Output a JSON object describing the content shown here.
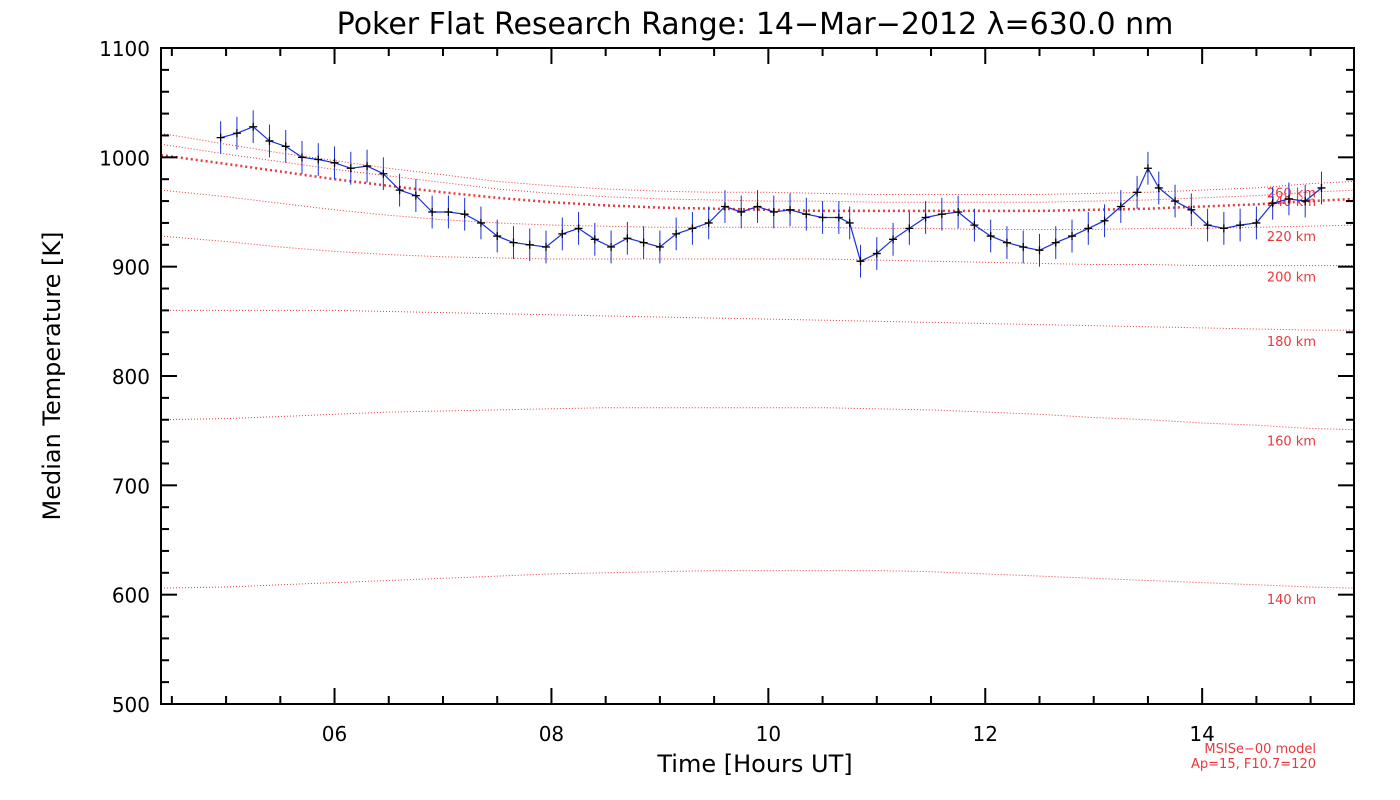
{
  "chart_data": {
    "type": "line",
    "title": "Poker Flat Research Range: 14−Mar−2012 λ=630.0 nm",
    "xlabel": "Time [Hours UT]",
    "ylabel": "Median Temperature [K]",
    "xlim": [
      4.4,
      15.4
    ],
    "ylim": [
      500,
      1100
    ],
    "xticks": [
      6,
      8,
      10,
      12,
      14
    ],
    "xtick_labels": [
      "06",
      "08",
      "10",
      "12",
      "14"
    ],
    "yticks": [
      500,
      600,
      700,
      800,
      900,
      1000,
      1100
    ],
    "ytick_labels": [
      "500",
      "600",
      "700",
      "800",
      "900",
      "1000",
      "1100"
    ],
    "grid": false,
    "colors": {
      "measurement_line": "#1a2fd6",
      "error_bars": "#1a2fd6",
      "markers": "#000000",
      "model": "#e8383c"
    },
    "measurement": {
      "x": [
        4.95,
        5.1,
        5.25,
        5.4,
        5.55,
        5.7,
        5.85,
        6.0,
        6.15,
        6.3,
        6.45,
        6.6,
        6.75,
        6.9,
        7.05,
        7.2,
        7.35,
        7.5,
        7.65,
        7.8,
        7.95,
        8.1,
        8.25,
        8.4,
        8.55,
        8.7,
        8.85,
        9.0,
        9.15,
        9.3,
        9.45,
        9.6,
        9.75,
        9.9,
        10.05,
        10.2,
        10.35,
        10.5,
        10.65,
        10.75,
        10.85,
        11.0,
        11.15,
        11.3,
        11.45,
        11.6,
        11.75,
        11.9,
        12.05,
        12.2,
        12.35,
        12.5,
        12.65,
        12.8,
        12.95,
        13.1,
        13.25,
        13.4,
        13.5,
        13.6,
        13.75,
        13.9,
        14.05,
        14.2,
        14.35,
        14.5,
        14.65,
        14.8,
        14.95,
        15.1
      ],
      "y": [
        1018,
        1022,
        1028,
        1015,
        1010,
        1000,
        998,
        995,
        990,
        992,
        985,
        970,
        965,
        950,
        950,
        948,
        940,
        928,
        922,
        920,
        918,
        930,
        935,
        925,
        918,
        926,
        922,
        918,
        930,
        935,
        940,
        955,
        950,
        955,
        950,
        952,
        948,
        945,
        945,
        940,
        905,
        912,
        925,
        935,
        945,
        948,
        950,
        938,
        928,
        922,
        918,
        915,
        922,
        928,
        935,
        942,
        955,
        968,
        990,
        972,
        960,
        952,
        938,
        935,
        938,
        940,
        958,
        962,
        960,
        972
      ],
      "error": 15
    },
    "model": {
      "name": "MSISe−00 model",
      "params": "Ap=15, F10.7=120",
      "x": [
        4.4,
        5.0,
        5.5,
        6.0,
        6.5,
        7.0,
        7.5,
        8.0,
        8.5,
        9.0,
        9.5,
        10.0,
        10.5,
        11.0,
        11.5,
        12.0,
        12.5,
        13.0,
        13.5,
        14.0,
        14.5,
        15.0,
        15.4
      ],
      "exospheric_temperature": [
        1002,
        994,
        987,
        980,
        974,
        968,
        963,
        959,
        956,
        954,
        953,
        952,
        951,
        951,
        951,
        951,
        951,
        952,
        953,
        955,
        957,
        960,
        962
      ],
      "altitude_profiles": [
        {
          "label": "260 km",
          "y": [
            1022,
            1012,
            1004,
            997,
            990,
            984,
            978,
            974,
            971,
            969,
            968,
            968,
            967,
            966,
            966,
            966,
            966,
            967,
            968,
            970,
            972,
            976,
            978
          ]
        },
        {
          "label": "240 km",
          "y": [
            1012,
            1003,
            996,
            989,
            983,
            977,
            971,
            967,
            964,
            962,
            961,
            960,
            960,
            959,
            959,
            959,
            959,
            960,
            961,
            963,
            965,
            968,
            970
          ]
        },
        {
          "label": "220 km",
          "y": [
            970,
            964,
            958,
            952,
            947,
            943,
            940,
            938,
            937,
            936,
            936,
            936,
            936,
            935,
            935,
            934,
            934,
            934,
            935,
            935,
            936,
            937,
            938
          ]
        },
        {
          "label": "200 km",
          "y": [
            928,
            923,
            918,
            914,
            911,
            909,
            908,
            907,
            907,
            907,
            907,
            907,
            907,
            906,
            905,
            904,
            903,
            902,
            902,
            901,
            901,
            901,
            901
          ]
        },
        {
          "label": "180 km",
          "y": [
            860,
            860,
            860,
            860,
            859,
            858,
            857,
            856,
            855,
            854,
            853,
            852,
            851,
            850,
            849,
            848,
            847,
            846,
            845,
            844,
            843,
            842,
            842
          ]
        },
        {
          "label": "160 km",
          "y": [
            760,
            761,
            763,
            765,
            767,
            768,
            769,
            770,
            771,
            771,
            771,
            771,
            771,
            770,
            769,
            767,
            765,
            762,
            760,
            757,
            755,
            752,
            751
          ]
        },
        {
          "label": "140 km",
          "y": [
            606,
            607,
            609,
            611,
            613,
            615,
            617,
            619,
            620,
            621,
            622,
            622,
            622,
            622,
            621,
            619,
            617,
            615,
            613,
            611,
            609,
            607,
            606
          ]
        }
      ]
    }
  }
}
